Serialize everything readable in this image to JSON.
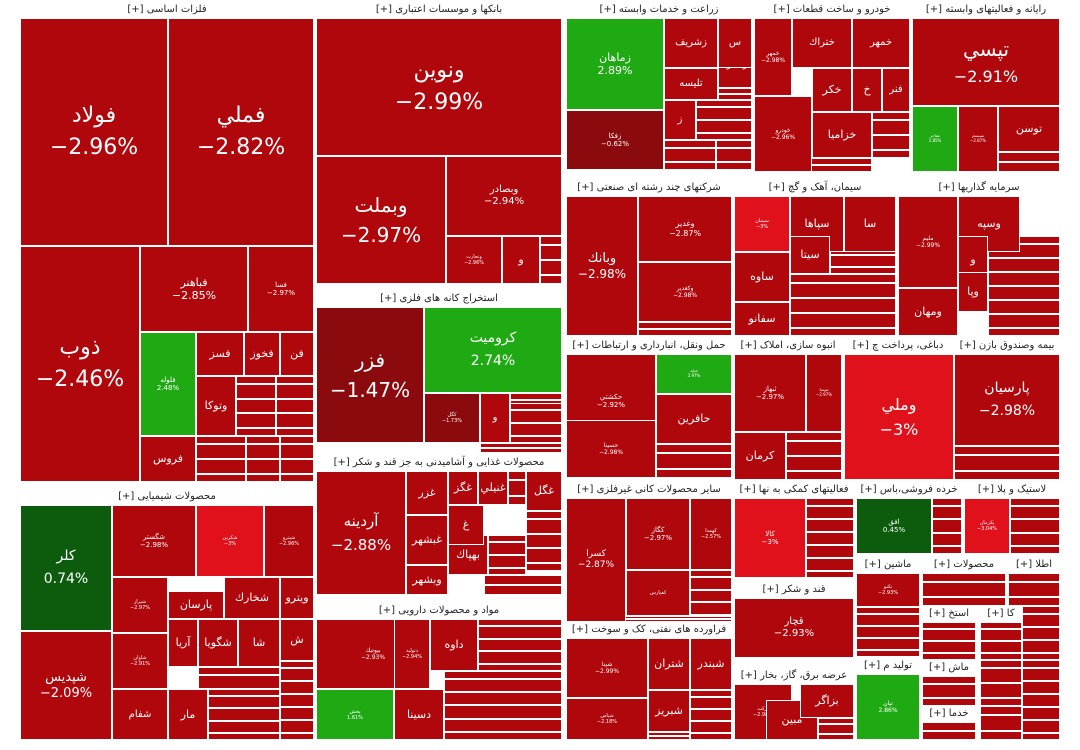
{
  "colors": {
    "deep_red": "#8a0a0e",
    "red": "#b0070c",
    "bright_red": "#e0111b",
    "green": "#1faa14",
    "dark_green": "#0d5c0d",
    "header_bg": "#ffffff"
  },
  "expand_marker": "[+]",
  "chart_data": {
    "type": "treemap",
    "title": "",
    "sectors": [
      {
        "name": "فلزات اساسی",
        "symbols": [
          {
            "name": "فولاد",
            "change": -2.96
          },
          {
            "name": "فملي",
            "change": -2.82
          },
          {
            "name": "ذوب",
            "change": -2.46
          },
          {
            "name": "فباهنر",
            "change": -2.85
          },
          {
            "name": "فسا",
            "change": -2.97
          },
          {
            "name": "فلوله",
            "change": 2.48
          },
          {
            "name": "فسز",
            "change": null
          },
          {
            "name": "فخوز",
            "change": null
          },
          {
            "name": "فن",
            "change": null
          },
          {
            "name": "وتوكا",
            "change": null
          },
          {
            "name": "فروس",
            "change": null
          }
        ]
      },
      {
        "name": "بانکها و موسسات اعتباری",
        "symbols": [
          {
            "name": "ونوين",
            "change": -2.99
          },
          {
            "name": "وبملت",
            "change": -2.97
          },
          {
            "name": "وبصادر",
            "change": -2.94
          },
          {
            "name": "وتجارت",
            "change": -2.96
          },
          {
            "name": "و",
            "change": null
          }
        ]
      },
      {
        "name": "زراعت و خدمات وابسته",
        "symbols": [
          {
            "name": "زماهان",
            "change": 2.89
          },
          {
            "name": "زفكا",
            "change": -0.62
          },
          {
            "name": "زشريف",
            "change": null
          },
          {
            "name": "زملارد",
            "change": null
          },
          {
            "name": "تليسه",
            "change": null
          },
          {
            "name": "س",
            "change": null
          },
          {
            "name": "ز",
            "change": null
          }
        ]
      },
      {
        "name": "خودرو و ساخت قطعات",
        "symbols": [
          {
            "name": "خمهر",
            "change": -2.98
          },
          {
            "name": "ختراك",
            "change": null
          },
          {
            "name": "خمهر",
            "change": null
          },
          {
            "name": "خكر",
            "change": null
          },
          {
            "name": "خ",
            "change": null
          },
          {
            "name": "فنر",
            "change": null
          },
          {
            "name": "خودرو",
            "change": -2.96
          },
          {
            "name": "خزاميا",
            "change": null
          }
        ]
      },
      {
        "name": "رایانه و فعالیتهای وابسته",
        "symbols": [
          {
            "name": "تپسي",
            "change": -2.91
          },
          {
            "name": "مفاخر",
            "change": 2.85
          },
          {
            "name": "سيستم",
            "change": -2.87
          },
          {
            "name": "توسن",
            "change": null
          }
        ]
      },
      {
        "name": "استخراج کانه های فلزی",
        "symbols": [
          {
            "name": "فزر",
            "change": -1.47
          },
          {
            "name": "كروميت",
            "change": 2.74
          },
          {
            "name": "كگل",
            "change": -1.73
          },
          {
            "name": "و",
            "change": null
          }
        ]
      },
      {
        "name": "محصولات غذایی و آشامیدنی به جز قند و شکر",
        "symbols": [
          {
            "name": "آردينه",
            "change": -2.88
          },
          {
            "name": "غزر",
            "change": null
          },
          {
            "name": "غبشهر",
            "change": null
          },
          {
            "name": "وبشهر",
            "change": null
          },
          {
            "name": "غگز",
            "change": null
          },
          {
            "name": "غنيلي",
            "change": null
          },
          {
            "name": "غگل",
            "change": null
          },
          {
            "name": "بهپاك",
            "change": null
          },
          {
            "name": "غ",
            "change": null
          }
        ]
      },
      {
        "name": "مواد و محصولات دارویی",
        "symbols": [
          {
            "name": "بيوتيك",
            "change": -2.93
          },
          {
            "name": "دتوليد",
            "change": -2.94
          },
          {
            "name": "داوه",
            "change": null
          },
          {
            "name": "پخش",
            "change": 1.61
          },
          {
            "name": "دسينا",
            "change": null
          }
        ]
      },
      {
        "name": "محصولات شیمیایی",
        "symbols": [
          {
            "name": "كلر",
            "change": 0.74
          },
          {
            "name": "شپديس",
            "change": -2.09
          },
          {
            "name": "شگستر",
            "change": -2.98
          },
          {
            "name": "شكربن",
            "change": -3
          },
          {
            "name": "شپترو",
            "change": -2.96
          },
          {
            "name": "شيراز",
            "change": -2.97
          },
          {
            "name": "پارسان",
            "change": null
          },
          {
            "name": "شخارك",
            "change": null
          },
          {
            "name": "ويترو",
            "change": null
          },
          {
            "name": "شاوان",
            "change": -2.91
          },
          {
            "name": "آريا",
            "change": null
          },
          {
            "name": "شگويا",
            "change": null
          },
          {
            "name": "شفام",
            "change": null
          },
          {
            "name": "ش",
            "change": null
          },
          {
            "name": "شا",
            "change": null
          },
          {
            "name": "مار",
            "change": null
          }
        ]
      },
      {
        "name": "شرکتهای چند رشته ای صنعتی",
        "symbols": [
          {
            "name": "وبانك",
            "change": -2.98
          },
          {
            "name": "وغدير",
            "change": -2.87
          },
          {
            "name": "وكغدير",
            "change": -2.98
          }
        ]
      },
      {
        "name": "سیمان، آهک و گچ",
        "symbols": [
          {
            "name": "سيمان",
            "change": -3
          },
          {
            "name": "سپاها",
            "change": null
          },
          {
            "name": "سيتا",
            "change": null
          },
          {
            "name": "ساوه",
            "change": null
          },
          {
            "name": "سفانو",
            "change": null
          },
          {
            "name": "سا",
            "change": null
          }
        ]
      },
      {
        "name": "سرمایه گذاریها",
        "symbols": [
          {
            "name": "وسپه",
            "change": null
          },
          {
            "name": "مليم",
            "change": -2.99
          },
          {
            "name": "و",
            "change": null
          },
          {
            "name": "وپا",
            "change": null
          },
          {
            "name": "ومهان",
            "change": null
          }
        ]
      },
      {
        "name": "حمل ونقل، انبارداری و ارتباطات",
        "symbols": [
          {
            "name": "حكشتي",
            "change": -2.92
          },
          {
            "name": "حتايد",
            "change": 2.97
          },
          {
            "name": "حافرين",
            "change": null
          },
          {
            "name": "حسينا",
            "change": -2.98
          }
        ]
      },
      {
        "name": "انبوه سازی، املاک",
        "symbols": [
          {
            "name": "ثبهاز",
            "change": -2.97
          },
          {
            "name": "ثنوسا",
            "change": -2.97
          },
          {
            "name": "كرمان",
            "change": null
          }
        ]
      },
      {
        "name": "دباغی، پرداخت چ",
        "symbols": [
          {
            "name": "وملي",
            "change": -3
          }
        ]
      },
      {
        "name": "بیمه وصندوق بازن",
        "symbols": [
          {
            "name": "پارسيان",
            "change": -2.98
          }
        ]
      },
      {
        "name": "سایر محصولات کانی غیرفلزی",
        "symbols": [
          {
            "name": "كسرا",
            "change": -2.87
          },
          {
            "name": "كگاز",
            "change": -2.97
          },
          {
            "name": "كهمدا",
            "change": -2.57
          },
          {
            "name": "كفپارس",
            "change": null
          }
        ]
      },
      {
        "name": "فعالیتهای کمکی به نها",
        "symbols": [
          {
            "name": "كالا",
            "change": -3
          }
        ]
      },
      {
        "name": "خرده فروشی،باس",
        "symbols": [
          {
            "name": "افق",
            "change": 0.45
          }
        ]
      },
      {
        "name": "لاستیک و پلا",
        "symbols": [
          {
            "name": "پكرمان",
            "change": -3.04
          }
        ]
      },
      {
        "name": "فراورده های نفتی، کک و سوخت",
        "symbols": [
          {
            "name": "شپنا",
            "change": -2.99
          },
          {
            "name": "شتران",
            "change": null
          },
          {
            "name": "شبندر",
            "change": null
          },
          {
            "name": "شبريز",
            "change": null
          },
          {
            "name": "شپاس",
            "change": -2.18
          }
        ]
      },
      {
        "name": "قند و شکر",
        "symbols": [
          {
            "name": "قچار",
            "change": -2.93
          }
        ]
      },
      {
        "name": "ماشین",
        "symbols": [
          {
            "name": "تكنو",
            "change": -2.93
          }
        ]
      },
      {
        "name": "محصولات",
        "symbols": []
      },
      {
        "name": "اطلا",
        "symbols": []
      },
      {
        "name": "عرضه برق، گاز، بخار",
        "symbols": [
          {
            "name": "بركت",
            "change": -2.98
          },
          {
            "name": "مبين",
            "change": null
          },
          {
            "name": "بزاگر",
            "change": null
          }
        ]
      },
      {
        "name": "تولید م",
        "symbols": [
          {
            "name": "نيان",
            "change": 2.86
          }
        ]
      },
      {
        "name": "استخ",
        "symbols": []
      },
      {
        "name": "كا",
        "symbols": []
      },
      {
        "name": "ماش",
        "symbols": []
      },
      {
        "name": "خدما",
        "symbols": []
      }
    ]
  }
}
